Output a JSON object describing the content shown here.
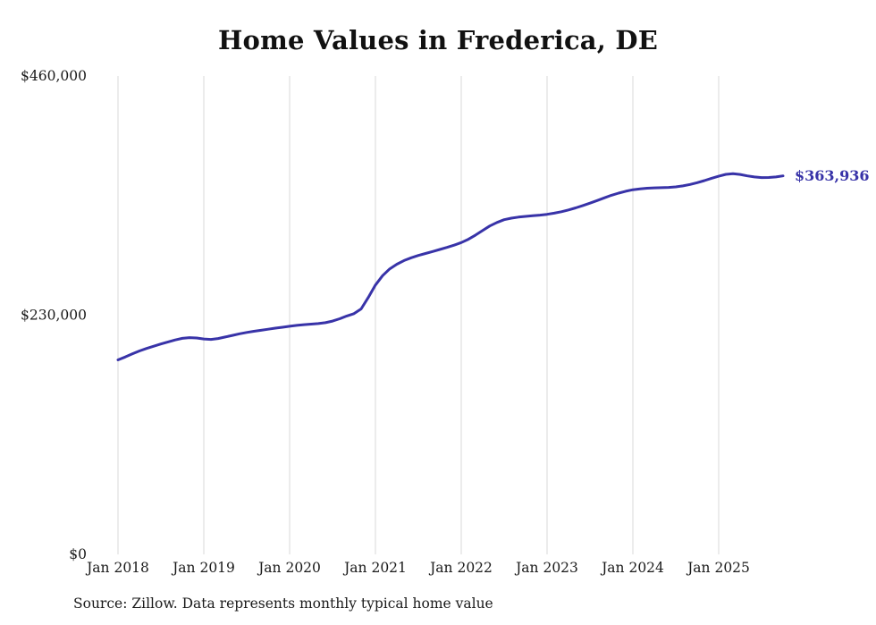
{
  "title": "Home Values in Frederica, DE",
  "source_note": "Source: Zillow. Data represents monthly typical home value",
  "end_label": "$363,936",
  "line_color": "#3833a8",
  "grid_color": "#d9d9d9",
  "axis_text_color": "#1a1a1a",
  "chart_data": {
    "type": "line",
    "title": "Home Values in Frederica, DE",
    "x_start": "Jan 2018",
    "x_interval": "monthly",
    "x_tick_labels": [
      "Jan 2018",
      "Jan 2019",
      "Jan 2020",
      "Jan 2021",
      "Jan 2022",
      "Jan 2023",
      "Jan 2024",
      "Jan 2025"
    ],
    "y_ticks": [
      {
        "label": "$0",
        "value": 0
      },
      {
        "label": "$230,000",
        "value": 230000
      },
      {
        "label": "$460,000",
        "value": 460000
      }
    ],
    "ylim": [
      0,
      460000
    ],
    "grid": "vertical-only",
    "legend_position": "none",
    "end_value": 363936,
    "series": [
      {
        "name": "Typical home value",
        "values": [
          187000,
          189800,
          192800,
          195600,
          198000,
          200200,
          202300,
          204300,
          206200,
          207700,
          208400,
          208100,
          207100,
          206700,
          207600,
          209000,
          210600,
          212100,
          213400,
          214500,
          215500,
          216500,
          217500,
          218400,
          219300,
          220200,
          220900,
          221400,
          221900,
          222800,
          224300,
          226600,
          229200,
          231500,
          236000,
          247000,
          259000,
          268000,
          274500,
          279000,
          282500,
          285200,
          287400,
          289300,
          291200,
          293200,
          295200,
          297300,
          299800,
          303000,
          307000,
          311500,
          315800,
          319200,
          321800,
          323300,
          324300,
          325000,
          325600,
          326200,
          327000,
          328100,
          329500,
          331200,
          333200,
          335400,
          337700,
          340200,
          342800,
          345300,
          347400,
          349200,
          350600,
          351500,
          352100,
          352400,
          352600,
          352900,
          353400,
          354300,
          355700,
          357400,
          359400,
          361600,
          363600,
          365400,
          366100,
          365300,
          364000,
          362900,
          362300,
          362400,
          362900,
          363936
        ]
      }
    ]
  }
}
